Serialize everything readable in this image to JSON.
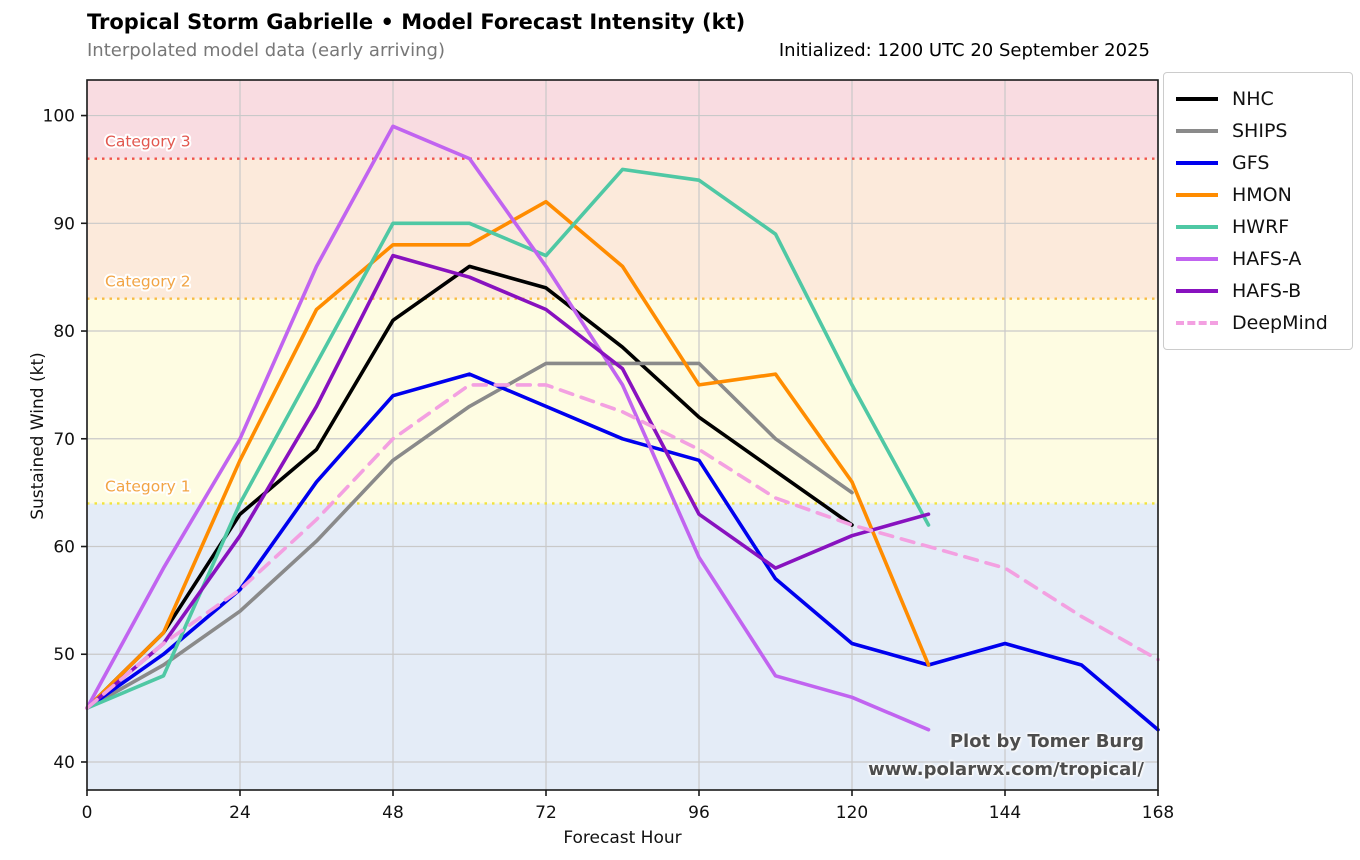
{
  "header": {
    "title": "Tropical Storm Gabrielle • Model Forecast Intensity (kt)",
    "subtitle_left": "Interpolated model data (early arriving)",
    "subtitle_right": "Initialized: 1200 UTC 20 September 2025"
  },
  "watermark": {
    "line1": "Plot by Tomer Burg",
    "line2": "www.polarwx.com/tropical/"
  },
  "chart_data": {
    "type": "line",
    "title": "Tropical Storm Gabrielle • Model Forecast Intensity (kt)",
    "xlabel": "Forecast Hour",
    "ylabel": "Sustained Wind (kt)",
    "x_ticks": [
      0,
      24,
      48,
      72,
      96,
      120,
      144,
      168
    ],
    "y_ticks": [
      40,
      50,
      60,
      70,
      80,
      90,
      100
    ],
    "x_range": [
      0,
      168
    ],
    "y_range": [
      37.4,
      103.3
    ],
    "grid": true,
    "grid_color": "#c9c9c9",
    "legend_position": "outside-upper-right",
    "bands": [
      {
        "name": "tropical-storm",
        "min": 37.4,
        "max": 64,
        "color": "#e4ecf7"
      },
      {
        "name": "category-1",
        "min": 64,
        "max": 83,
        "color": "#fefce2"
      },
      {
        "name": "category-2",
        "min": 83,
        "max": 96,
        "color": "#fceadb"
      },
      {
        "name": "category-3",
        "min": 96,
        "max": 103.3,
        "color": "#f9dce1"
      }
    ],
    "thresholds": [
      {
        "value": 64,
        "line_color": "#f2e33c",
        "label": "Category 1",
        "label_color": "#f2a444"
      },
      {
        "value": 83,
        "line_color": "#f7bc45",
        "label": "Category 2",
        "label_color": "#f2a444"
      },
      {
        "value": 96,
        "line_color": "#f0544c",
        "label": "Category 3",
        "label_color": "#e2574e"
      }
    ],
    "series": [
      {
        "name": "NHC",
        "color": "#000000",
        "dash": null,
        "x": [
          0,
          12,
          24,
          36,
          48,
          60,
          72,
          84,
          96,
          108,
          120
        ],
        "values": [
          45,
          52,
          63,
          69,
          81,
          86,
          84,
          78.5,
          72,
          67,
          62
        ]
      },
      {
        "name": "SHIPS",
        "color": "#8a8a8a",
        "dash": null,
        "x": [
          0,
          12,
          24,
          36,
          48,
          60,
          72,
          84,
          96,
          108,
          120
        ],
        "values": [
          45,
          49,
          54,
          60.5,
          68,
          73,
          77,
          77,
          77,
          70,
          65
        ]
      },
      {
        "name": "GFS",
        "color": "#0000ee",
        "dash": null,
        "x": [
          0,
          12,
          24,
          36,
          48,
          60,
          72,
          84,
          96,
          108,
          120,
          132,
          144,
          156,
          168
        ],
        "values": [
          45,
          50,
          56,
          66,
          74,
          76,
          73,
          70,
          68,
          57,
          51,
          49,
          51,
          49,
          43
        ]
      },
      {
        "name": "HMON",
        "color": "#ff8c00",
        "dash": null,
        "x": [
          0,
          12,
          24,
          36,
          48,
          60,
          72,
          84,
          96,
          108,
          120,
          132
        ],
        "values": [
          45,
          52,
          68,
          82,
          88,
          88,
          92,
          86,
          75,
          76,
          66,
          49
        ]
      },
      {
        "name": "HWRF",
        "color": "#4fc8a4",
        "dash": null,
        "x": [
          0,
          12,
          24,
          36,
          48,
          60,
          72,
          84,
          96,
          108,
          120,
          132
        ],
        "values": [
          45,
          48,
          64,
          77,
          90,
          90,
          87,
          95,
          94,
          89,
          75,
          62
        ]
      },
      {
        "name": "HAFS-A",
        "color": "#c164f0",
        "dash": null,
        "x": [
          0,
          12,
          24,
          36,
          48,
          60,
          72,
          84,
          96,
          108,
          120,
          132
        ],
        "values": [
          45,
          58,
          70,
          86,
          99,
          96,
          86,
          75,
          59,
          48,
          46,
          43
        ]
      },
      {
        "name": "HAFS-B",
        "color": "#8812bf",
        "dash": null,
        "x": [
          0,
          12,
          24,
          36,
          48,
          60,
          72,
          84,
          96,
          108,
          120,
          132
        ],
        "values": [
          45,
          51,
          61,
          73,
          87,
          85,
          82,
          76.5,
          63,
          58,
          61,
          63
        ]
      },
      {
        "name": "DeepMind",
        "color": "#f3a0e1",
        "dash": "13 9",
        "x": [
          0,
          12,
          24,
          36,
          48,
          60,
          72,
          84,
          96,
          108,
          120,
          132,
          144,
          156,
          168
        ],
        "values": [
          45,
          51,
          56,
          62.5,
          70,
          75,
          75,
          72.5,
          69,
          64.5,
          62,
          60,
          58,
          53.5,
          49.5
        ]
      }
    ]
  }
}
